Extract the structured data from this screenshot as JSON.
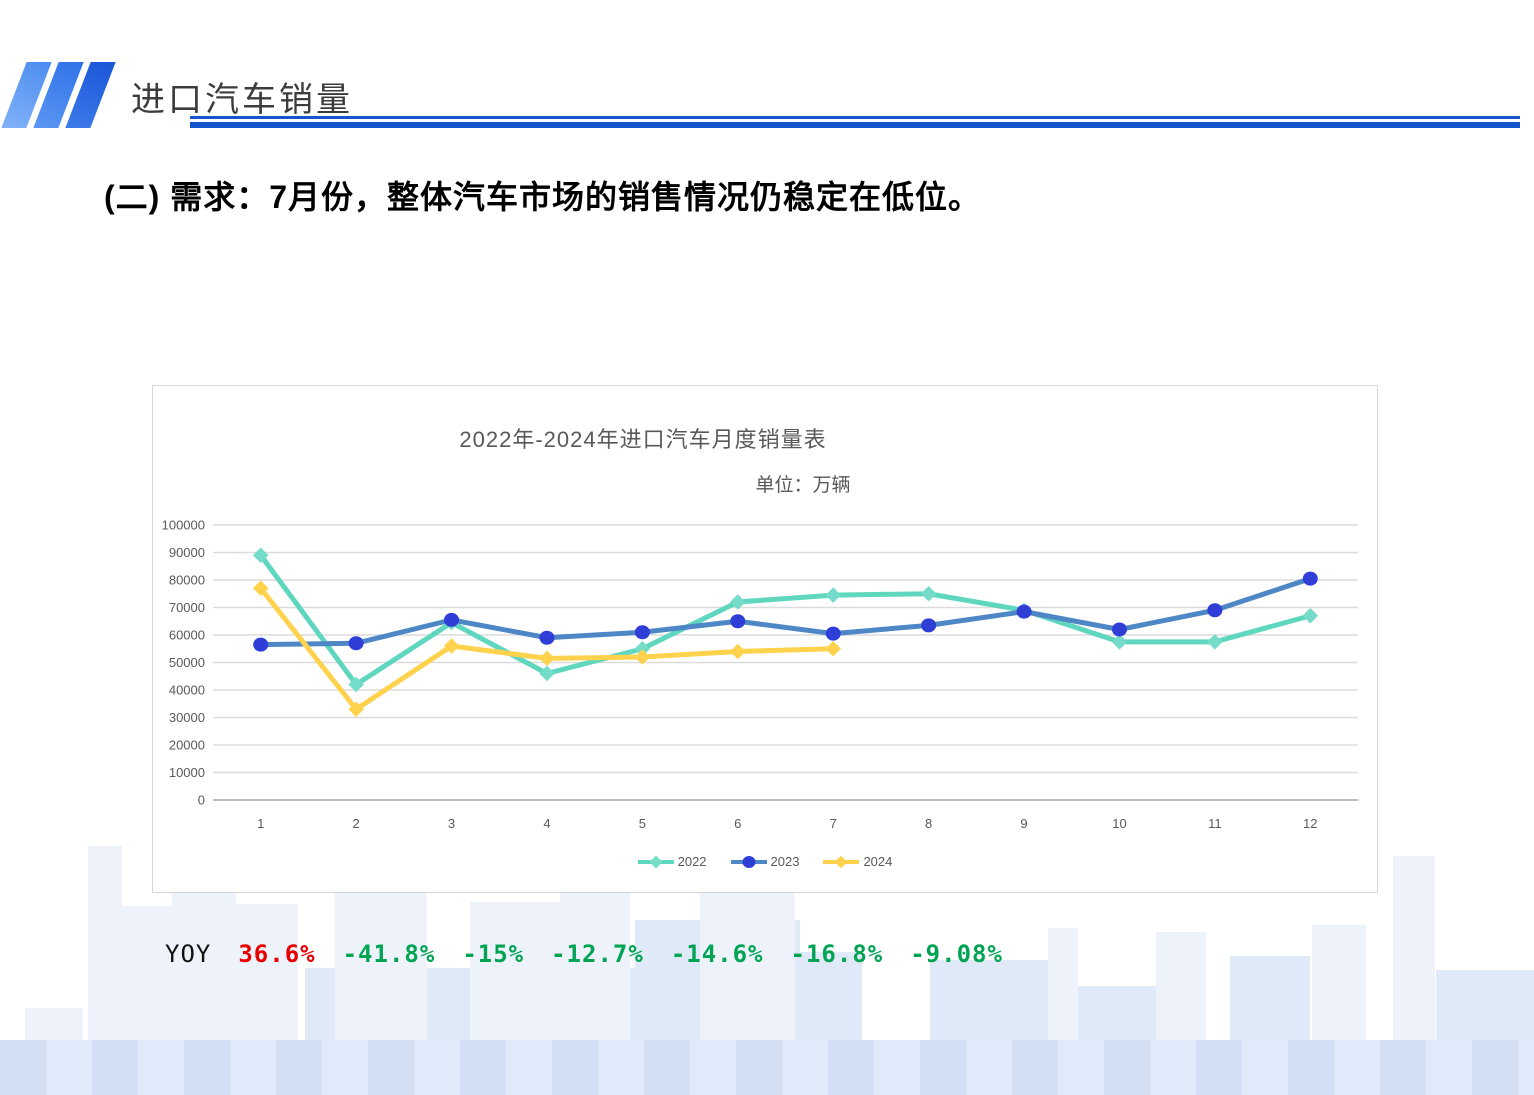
{
  "header": {
    "title": "进口汽车销量"
  },
  "heading": {
    "text": "(二) 需求：7月份，整体汽车市场的销售情况仍稳定在低位。"
  },
  "chart": {
    "title": "2022年-2024年进口汽车月度销量表",
    "unit_label": "单位：万辆"
  },
  "chart_data": {
    "type": "line",
    "title": "2022年-2024年进口汽车月度销量表",
    "unit_label": "单位：万辆",
    "x": [
      1,
      2,
      3,
      4,
      5,
      6,
      7,
      8,
      9,
      10,
      11,
      12
    ],
    "xlabel": "",
    "ylabel": "",
    "ylim": [
      0,
      100000
    ],
    "ytick_step": 10000,
    "grid": true,
    "legend_position": "bottom",
    "series": [
      {
        "name": "2022",
        "color": "#5FD6BE",
        "marker": "diamond",
        "marker_color": "#74DCC8",
        "values": [
          89000,
          42000,
          64500,
          46000,
          55000,
          72000,
          74500,
          75000,
          69000,
          57500,
          57500,
          67000
        ]
      },
      {
        "name": "2023",
        "color": "#4E87C6",
        "marker": "circle",
        "marker_color": "#2E3ED6",
        "values": [
          56500,
          57000,
          65500,
          59000,
          61000,
          65000,
          60500,
          63500,
          68500,
          62000,
          69000,
          80500
        ]
      },
      {
        "name": "2024",
        "color": "#FFD24D",
        "marker": "diamond",
        "marker_color": "#FFD24D",
        "values": [
          77000,
          33000,
          56000,
          51500,
          52000,
          54000,
          55000
        ]
      }
    ]
  },
  "yoy": {
    "label": "YOY",
    "values": [
      {
        "text": "36.6%",
        "color": "#E60000"
      },
      {
        "text": "-41.8%",
        "color": "#00A453"
      },
      {
        "text": "-15%",
        "color": "#00A453"
      },
      {
        "text": "-12.7%",
        "color": "#00A453"
      },
      {
        "text": "-14.6%",
        "color": "#00A453"
      },
      {
        "text": "-16.8%",
        "color": "#00A453"
      },
      {
        "text": "-9.08%",
        "color": "#00A453"
      }
    ]
  },
  "colors": {
    "accent_blue": "#1356CB",
    "grid": "#DCDCDC",
    "axis": "#BEBEBE",
    "text_gray": "#595959",
    "building_light": "#EEF3FB",
    "building_medium": "#DFE9F7"
  }
}
